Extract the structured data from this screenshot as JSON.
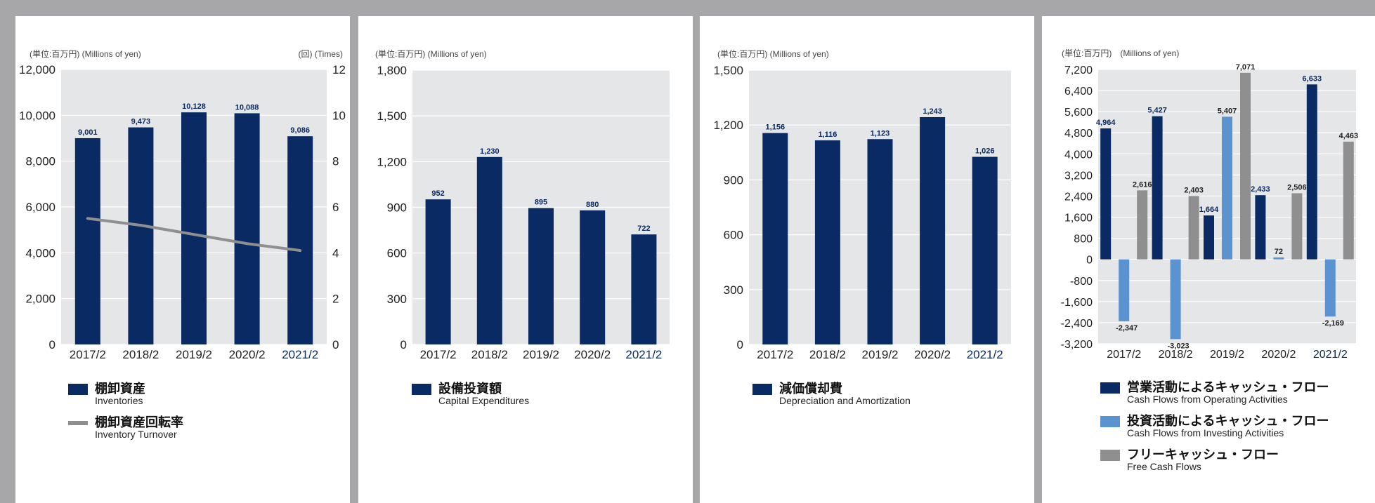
{
  "chart_data": [
    {
      "type": "bar",
      "unit_left": "(単位:百万円) (Millions of yen)",
      "unit_right": "(回) (Times)",
      "categories": [
        "2017/2",
        "2018/2",
        "2019/2",
        "2020/2",
        "2021/2"
      ],
      "series": [
        {
          "name": "棚卸資産",
          "name_en": "Inventories",
          "type": "bar",
          "values": [
            9001,
            9473,
            10128,
            10088,
            9086
          ],
          "labels": [
            "9,001",
            "9,473",
            "10,128",
            "10,088",
            "9,086"
          ],
          "color": "#0a2a63"
        },
        {
          "name": "棚卸資産回転率",
          "name_en": "Inventory Turnover",
          "type": "line",
          "axis": "right",
          "values": [
            5.5,
            5.2,
            4.8,
            4.4,
            4.1
          ],
          "color": "#8f8f8f"
        }
      ],
      "ylim": [
        0,
        12000
      ],
      "yticks": [
        "0",
        "2,000",
        "4,000",
        "6,000",
        "8,000",
        "10,000",
        "12,000"
      ],
      "y2lim": [
        0,
        12
      ],
      "y2ticks": [
        "0",
        "2",
        "4",
        "6",
        "8",
        "10",
        "12"
      ],
      "grid": true
    },
    {
      "type": "bar",
      "unit_left": "(単位:百万円) (Millions of yen)",
      "categories": [
        "2017/2",
        "2018/2",
        "2019/2",
        "2020/2",
        "2021/2"
      ],
      "series": [
        {
          "name": "設備投資額",
          "name_en": "Capital Expenditures",
          "values": [
            952,
            1230,
            895,
            880,
            722
          ],
          "labels": [
            "952",
            "1,230",
            "895",
            "880",
            "722"
          ],
          "color": "#0a2a63"
        }
      ],
      "ylim": [
        0,
        1800
      ],
      "yticks": [
        "0",
        "300",
        "600",
        "900",
        "1,200",
        "1,500",
        "1,800"
      ],
      "grid": true
    },
    {
      "type": "bar",
      "unit_left": "(単位:百万円) (Millions of yen)",
      "categories": [
        "2017/2",
        "2018/2",
        "2019/2",
        "2020/2",
        "2021/2"
      ],
      "series": [
        {
          "name": "減価償却費",
          "name_en": "Depreciation and Amortization",
          "values": [
            1156,
            1116,
            1123,
            1243,
            1026
          ],
          "labels": [
            "1,156",
            "1,116",
            "1,123",
            "1,243",
            "1,026"
          ],
          "color": "#0a2a63"
        }
      ],
      "ylim": [
        0,
        1500
      ],
      "yticks": [
        "0",
        "300",
        "600",
        "900",
        "1,200",
        "1,500"
      ],
      "grid": true
    },
    {
      "type": "bar",
      "unit_left": "(単位:百万円)　(Millions of yen)",
      "categories": [
        "2017/2",
        "2018/2",
        "2019/2",
        "2020/2",
        "2021/2"
      ],
      "series": [
        {
          "name": "営業活動によるキャッシュ・フロー",
          "name_en": "Cash Flows from Operating Activities",
          "values": [
            4964,
            5427,
            1664,
            2433,
            6633
          ],
          "labels": [
            "4,964",
            "5,427",
            "1,664",
            "2,433",
            "6,633"
          ],
          "color": "#0a2a63"
        },
        {
          "name": "投資活動によるキャッシュ・フロー",
          "name_en": "Cash Flows from Investing Activities",
          "values": [
            -2347,
            -3023,
            5407,
            72,
            -2169
          ],
          "labels": [
            "-2,347",
            "-3,023",
            "5,407",
            "72",
            "-2,169"
          ],
          "color": "#5b93d0"
        },
        {
          "name": "フリーキャッシュ・フロー",
          "name_en": "Free Cash Flows",
          "values": [
            2616,
            2403,
            7071,
            2506,
            4463
          ],
          "labels": [
            "2,616",
            "2,403",
            "7,071",
            "2,506",
            "4,463"
          ],
          "color": "#8f8f8f"
        }
      ],
      "ylim": [
        -3200,
        7200
      ],
      "yticks": [
        "-3,200",
        "-2,400",
        "-1,600",
        "-800",
        "0",
        "800",
        "1,600",
        "2,400",
        "3,200",
        "4,000",
        "4,800",
        "5,600",
        "6,400",
        "7,200"
      ],
      "grid": true
    }
  ]
}
